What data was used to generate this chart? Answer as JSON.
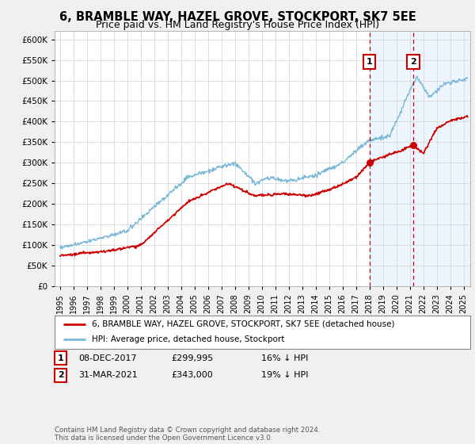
{
  "title": "6, BRAMBLE WAY, HAZEL GROVE, STOCKPORT, SK7 5EE",
  "subtitle": "Price paid vs. HM Land Registry's House Price Index (HPI)",
  "ylim": [
    0,
    620000
  ],
  "yticks": [
    0,
    50000,
    100000,
    150000,
    200000,
    250000,
    300000,
    350000,
    400000,
    450000,
    500000,
    550000,
    600000
  ],
  "legend_line1": "6, BRAMBLE WAY, HAZEL GROVE, STOCKPORT, SK7 5EE (detached house)",
  "legend_line2": "HPI: Average price, detached house, Stockport",
  "marker1_date": 2018.0,
  "marker1_label": "1",
  "marker1_price": 299995,
  "marker1_col1": "08-DEC-2017",
  "marker1_col2": "£299,995",
  "marker1_col3": "16% ↓ HPI",
  "marker2_date": 2021.25,
  "marker2_label": "2",
  "marker2_price": 343000,
  "marker2_col1": "31-MAR-2021",
  "marker2_col2": "£343,000",
  "marker2_col3": "19% ↓ HPI",
  "hpi_color": "#7ab8d9",
  "price_color": "#cc0000",
  "marker_color": "#cc0000",
  "shade_color": "#ddeeff",
  "background_color": "#f0f0f0",
  "plot_bg_color": "#ffffff",
  "footer": "Contains HM Land Registry data © Crown copyright and database right 2024.\nThis data is licensed under the Open Government Licence v3.0.",
  "title_fontsize": 10.5,
  "subtitle_fontsize": 9.0,
  "xlim_left": 1994.6,
  "xlim_right": 2025.5
}
